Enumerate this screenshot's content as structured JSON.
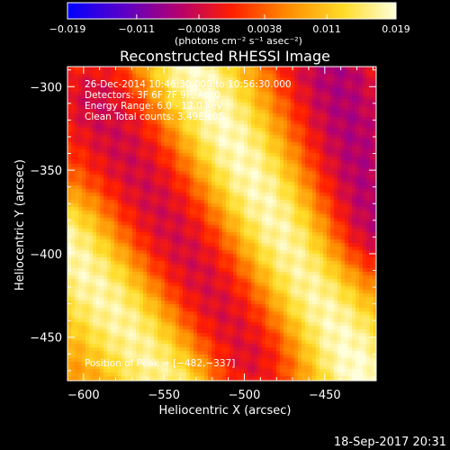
{
  "chart_data": {
    "type": "heatmap",
    "title": "Reconstructed RHESSI Image",
    "xlabel": "Heliocentric X (arcsec)",
    "ylabel": "Heliocentric Y (arcsec)",
    "xlim": [
      -610,
      -418
    ],
    "ylim": [
      -476,
      -288
    ],
    "x_ticks": [
      -600,
      -550,
      -500,
      -450
    ],
    "y_ticks": [
      -300,
      -350,
      -400,
      -450
    ],
    "x_tick_labels": [
      "−600",
      "−550",
      "−500",
      "−450"
    ],
    "y_tick_labels": [
      "−300",
      "−350",
      "−400",
      "−450"
    ],
    "colorbar": {
      "range": [
        -0.019,
        0.019
      ],
      "ticks": [
        -0.019,
        -0.011,
        -0.0038,
        0.0038,
        0.011,
        0.019
      ],
      "tick_labels": [
        "−0.019",
        "−0.011",
        "−0.0038",
        "0.0038",
        "0.011",
        "0.019"
      ],
      "unit_label": "(photons cm⁻² s⁻¹ asec⁻²)",
      "colors": [
        "#0000ff",
        "#5a00c8",
        "#b4006e",
        "#ff1e00",
        "#ff8c00",
        "#ffdc28",
        "#ffffdc"
      ]
    },
    "annotations": [
      "26-Dec-2014 10:46:30.000 to 10:56:30.000",
      "Detectors: 3F 6F 7F 9F, Att 0",
      "Energy Range: 6.0 - 12.0 keV",
      "Clean     Total counts: 3.49E+05"
    ],
    "peak_label": "Position of Peak = [−482,−337]",
    "peak": [
      -482,
      -337
    ],
    "features": [
      {
        "kind": "bright-ridge",
        "from": [
          -535,
          -290
        ],
        "to": [
          -430,
          -470
        ],
        "peak": 0.019
      },
      {
        "kind": "bright-ridge",
        "from": [
          -610,
          -395
        ],
        "to": [
          -545,
          -476
        ],
        "peak": 0.018
      },
      {
        "kind": "dark-trough",
        "from": [
          -590,
          -310
        ],
        "to": [
          -500,
          -460
        ],
        "peak": -0.004
      },
      {
        "kind": "dark-trough",
        "from": [
          -445,
          -288
        ],
        "to": [
          -418,
          -380
        ],
        "peak": -0.006
      }
    ]
  },
  "footer": {
    "timestamp": "18-Sep-2017 20:31"
  }
}
